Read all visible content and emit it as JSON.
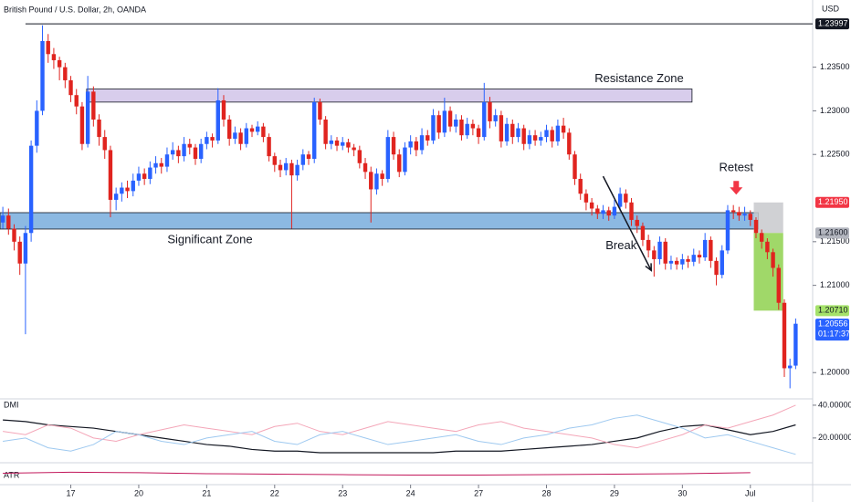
{
  "chart_data": [
    {
      "type": "candlestick",
      "title": "British Pound / U.S. Dollar, 2h, OANDA",
      "currency": "USD",
      "up_color": "#2962ff",
      "down_color": "#e0241f",
      "open": [
        1.2172,
        1.218,
        1.2165,
        1.215,
        1.2125,
        1.216,
        1.226,
        1.23,
        1.238,
        1.2365,
        1.2358,
        1.235,
        1.2335,
        1.2318,
        1.2305,
        1.2262,
        1.2322,
        1.229,
        1.227,
        1.2255,
        1.2198,
        1.2205,
        1.2212,
        1.2208,
        1.222,
        1.2228,
        1.2222,
        1.2235,
        1.224,
        1.2236,
        1.225,
        1.2255,
        1.2248,
        1.2262,
        1.2258,
        1.2245,
        1.2262,
        1.227,
        1.2266,
        1.2312,
        1.229,
        1.2268,
        1.2275,
        1.2262,
        1.228,
        1.2276,
        1.2282,
        1.227,
        1.2248,
        1.2238,
        1.2232,
        1.224,
        1.2226,
        1.2238,
        1.225,
        1.2245,
        1.231,
        1.229,
        1.2262,
        1.2266,
        1.226,
        1.2264,
        1.2258,
        1.2255,
        1.224,
        1.223,
        1.221,
        1.2228,
        1.2222,
        1.227,
        1.225,
        1.223,
        1.2258,
        1.2265,
        1.2255,
        1.2272,
        1.2266,
        1.2295,
        1.2275,
        1.23,
        1.2282,
        1.229,
        1.2272,
        1.2285,
        1.228,
        1.227,
        1.231,
        1.2288,
        1.2295,
        1.2265,
        1.2285,
        1.227,
        1.228,
        1.2262,
        1.2272,
        1.2266,
        1.227,
        1.2278,
        1.2265,
        1.2283,
        1.2275,
        1.225,
        1.2222,
        1.2205,
        1.2195,
        1.2188,
        1.2182,
        1.2186,
        1.218,
        1.219,
        1.2205,
        1.2195,
        1.2175,
        1.2168,
        1.2152,
        1.214,
        1.213,
        1.215,
        1.2125,
        1.2128,
        1.2124,
        1.213,
        1.2127,
        1.2135,
        1.2132,
        1.2152,
        1.2128,
        1.2112,
        1.214,
        1.2186,
        1.2184,
        1.218,
        1.2182,
        1.2175,
        1.216,
        1.215,
        1.2138,
        1.212,
        1.208,
        1.2005,
        1.2008
      ],
      "high": [
        1.219,
        1.2188,
        1.217,
        1.2156,
        1.2168,
        1.2266,
        1.2312,
        1.2398,
        1.2388,
        1.2372,
        1.2362,
        1.2355,
        1.234,
        1.2325,
        1.231,
        1.234,
        1.2328,
        1.2296,
        1.2278,
        1.226,
        1.2212,
        1.2218,
        1.222,
        1.2228,
        1.2236,
        1.2234,
        1.2242,
        1.2248,
        1.2246,
        1.2258,
        1.2264,
        1.226,
        1.227,
        1.2268,
        1.2262,
        1.2268,
        1.2276,
        1.2274,
        1.2326,
        1.2318,
        1.2295,
        1.2282,
        1.228,
        1.2286,
        1.2284,
        1.2288,
        1.2286,
        1.2274,
        1.2252,
        1.2244,
        1.2246,
        1.2244,
        1.2244,
        1.2256,
        1.2254,
        1.2315,
        1.2314,
        1.2294,
        1.2272,
        1.227,
        1.227,
        1.2268,
        1.2262,
        1.226,
        1.2246,
        1.2236,
        1.2234,
        1.2232,
        1.2278,
        1.2276,
        1.2256,
        1.2264,
        1.2272,
        1.227,
        1.228,
        1.2278,
        1.2302,
        1.23,
        1.2315,
        1.2305,
        1.2296,
        1.2295,
        1.2292,
        1.229,
        1.2284,
        1.2332,
        1.2316,
        1.2302,
        1.23,
        1.2292,
        1.229,
        1.2286,
        1.2284,
        1.2278,
        1.2278,
        1.2276,
        1.2284,
        1.2282,
        1.229,
        1.2292,
        1.228,
        1.2254,
        1.2228,
        1.221,
        1.22,
        1.2192,
        1.2192,
        1.219,
        1.2198,
        1.2212,
        1.221,
        1.22,
        1.218,
        1.2172,
        1.2158,
        1.2145,
        1.2156,
        1.2154,
        1.2134,
        1.2132,
        1.2136,
        1.2134,
        1.2142,
        1.214,
        1.216,
        1.2156,
        1.2132,
        1.2146,
        1.2192,
        1.2192,
        1.219,
        1.219,
        1.2186,
        1.2178,
        1.2164,
        1.2154,
        1.2142,
        1.2124,
        1.2084,
        1.2016,
        1.2062
      ],
      "low": [
        1.2165,
        1.2158,
        1.214,
        1.2112,
        1.2044,
        1.215,
        1.2252,
        1.2295,
        1.2355,
        1.2348,
        1.2335,
        1.2326,
        1.231,
        1.2296,
        1.2255,
        1.2258,
        1.2282,
        1.226,
        1.2245,
        1.2178,
        1.2186,
        1.2196,
        1.22,
        1.2202,
        1.2214,
        1.2215,
        1.2216,
        1.2228,
        1.2228,
        1.223,
        1.2244,
        1.224,
        1.2242,
        1.225,
        1.2238,
        1.224,
        1.2256,
        1.2258,
        1.2262,
        1.2282,
        1.226,
        1.2262,
        1.2255,
        1.2258,
        1.227,
        1.2272,
        1.2264,
        1.2242,
        1.223,
        1.2224,
        1.2226,
        1.2165,
        1.222,
        1.2232,
        1.2238,
        1.224,
        1.2284,
        1.2256,
        1.2256,
        1.2254,
        1.2255,
        1.2252,
        1.2248,
        1.2234,
        1.2222,
        1.2172,
        1.2204,
        1.2214,
        1.2218,
        1.2244,
        1.2224,
        1.2226,
        1.225,
        1.2248,
        1.225,
        1.226,
        1.2262,
        1.2268,
        1.227,
        1.2276,
        1.2275,
        1.2266,
        1.2268,
        1.2272,
        1.2262,
        1.2266,
        1.228,
        1.2282,
        1.2258,
        1.226,
        1.2262,
        1.2264,
        1.2255,
        1.2256,
        1.226,
        1.226,
        1.2264,
        1.2258,
        1.226,
        1.2268,
        1.2244,
        1.2215,
        1.2198,
        1.2186,
        1.218,
        1.2176,
        1.2176,
        1.2174,
        1.2176,
        1.2185,
        1.2188,
        1.2168,
        1.216,
        1.2145,
        1.2132,
        1.211,
        1.2124,
        1.2118,
        1.2118,
        1.2118,
        1.2118,
        1.212,
        1.2122,
        1.2125,
        1.2128,
        1.212,
        1.21,
        1.2108,
        1.2136,
        1.2176,
        1.2174,
        1.2174,
        1.2168,
        1.2154,
        1.2142,
        1.213,
        1.211,
        1.2072,
        1.1995,
        1.1982,
        1.2004
      ],
      "close": [
        1.218,
        1.2165,
        1.215,
        1.2125,
        1.216,
        1.226,
        1.23,
        1.238,
        1.2365,
        1.2358,
        1.235,
        1.2335,
        1.2318,
        1.2305,
        1.2262,
        1.2322,
        1.229,
        1.227,
        1.2255,
        1.2198,
        1.2205,
        1.2212,
        1.2208,
        1.222,
        1.2228,
        1.2222,
        1.2235,
        1.224,
        1.2236,
        1.225,
        1.2255,
        1.2248,
        1.2262,
        1.2258,
        1.2245,
        1.2262,
        1.227,
        1.2266,
        1.2312,
        1.229,
        1.2268,
        1.2275,
        1.2262,
        1.228,
        1.2276,
        1.2282,
        1.227,
        1.2248,
        1.2238,
        1.2232,
        1.224,
        1.2226,
        1.2238,
        1.225,
        1.2245,
        1.231,
        1.229,
        1.2262,
        1.2266,
        1.226,
        1.2264,
        1.2258,
        1.2255,
        1.224,
        1.223,
        1.221,
        1.2228,
        1.2222,
        1.227,
        1.225,
        1.223,
        1.2258,
        1.2265,
        1.2255,
        1.2272,
        1.2266,
        1.2295,
        1.2275,
        1.23,
        1.2282,
        1.229,
        1.2272,
        1.2285,
        1.228,
        1.227,
        1.231,
        1.2288,
        1.2295,
        1.2265,
        1.2285,
        1.227,
        1.228,
        1.2262,
        1.2272,
        1.2266,
        1.227,
        1.2278,
        1.2265,
        1.2283,
        1.2275,
        1.225,
        1.2222,
        1.2205,
        1.2195,
        1.2188,
        1.2182,
        1.2186,
        1.218,
        1.219,
        1.2205,
        1.2195,
        1.2175,
        1.2168,
        1.2152,
        1.214,
        1.213,
        1.215,
        1.2125,
        1.2128,
        1.2124,
        1.213,
        1.2127,
        1.2135,
        1.2132,
        1.2152,
        1.2128,
        1.2112,
        1.214,
        1.2186,
        1.2184,
        1.218,
        1.2182,
        1.2175,
        1.216,
        1.215,
        1.2138,
        1.212,
        1.208,
        1.2005,
        1.2008,
        1.2056
      ],
      "xlim": [
        -0.5,
        143
      ],
      "ylim": [
        1.1972,
        1.2427
      ],
      "yticks": [
        {
          "value": 1.235,
          "label": "1.23500"
        },
        {
          "value": 1.23,
          "label": "1.23000"
        },
        {
          "value": 1.225,
          "label": "1.22500"
        },
        {
          "value": 1.215,
          "label": "1.21500"
        },
        {
          "value": 1.21,
          "label": "1.21000"
        },
        {
          "value": 1.2,
          "label": "1.20000"
        }
      ],
      "xticks": [
        {
          "value": 12,
          "label": "17"
        },
        {
          "value": 24,
          "label": "20"
        },
        {
          "value": 36,
          "label": "21"
        },
        {
          "value": 48,
          "label": "22"
        },
        {
          "value": 60,
          "label": "23"
        },
        {
          "value": 72,
          "label": "24"
        },
        {
          "value": 84,
          "label": "27"
        },
        {
          "value": 96,
          "label": "28"
        },
        {
          "value": 108,
          "label": "29"
        },
        {
          "value": 120,
          "label": "30"
        },
        {
          "value": 132,
          "label": "Jul"
        }
      ],
      "price_labels": [
        {
          "value": 1.23997,
          "label": "1.23997",
          "color": "#131722",
          "text_color": "#ffffff"
        },
        {
          "value": 1.2195,
          "label": "1.21950",
          "color": "#f23645",
          "text_color": "#ffffff"
        },
        {
          "value": 1.216,
          "label": "1.21600",
          "color": "#b2b5be",
          "text_color": "#131722"
        },
        {
          "value": 1.2071,
          "label": "1.20710",
          "color": "#a5e26a",
          "text_color": "#131722"
        },
        {
          "value": 1.20556,
          "label": "1.20556",
          "color": "#2962ff",
          "text_color": "#ffffff",
          "countdown": "01:17:37"
        }
      ],
      "hline": {
        "value": 1.23997,
        "from": 4
      },
      "zones": [
        {
          "label": "Resistance Zone",
          "xlim": [
            14.8,
            121.7
          ],
          "ylim": [
            1.231,
            1.2325
          ],
          "color": "#d1c4e9"
        },
        {
          "label": "Significant Zone",
          "xlim": [
            -0.5,
            133.4
          ],
          "ylim": [
            1.21645,
            1.21833
          ],
          "color": "#5b9bd5"
        }
      ],
      "boxes": [
        {
          "xlim": [
            132.6,
            137.8
          ],
          "ylim": [
            1.216,
            1.2195
          ],
          "color": "#c8c9cc"
        },
        {
          "xlim": [
            132.6,
            137.8
          ],
          "ylim": [
            1.2071,
            1.216
          ],
          "color": "#8fd14f"
        }
      ],
      "break_arrow": {
        "label": "Break",
        "from": [
          106,
          1.2225
        ],
        "to": [
          114.5,
          1.2117
        ]
      },
      "retest_arrow": {
        "label": "Retest",
        "at": [
          129.5,
          1.2205
        ]
      }
    },
    {
      "type": "line",
      "label": "DMI",
      "ylim": [
        6,
        42.2
      ],
      "yticks": [
        {
          "value": 40,
          "label": "40.00000"
        },
        {
          "value": 20,
          "label": "20.00000"
        }
      ],
      "x": [
        0,
        4,
        8,
        12,
        16,
        20,
        24,
        28,
        32,
        36,
        40,
        44,
        48,
        52,
        56,
        60,
        64,
        68,
        72,
        76,
        80,
        84,
        88,
        92,
        96,
        100,
        104,
        108,
        112,
        116,
        120,
        124,
        128,
        132,
        136,
        140
      ],
      "series": [
        {
          "color": "#131722",
          "values": [
            31,
            30,
            28,
            27,
            26,
            24,
            22,
            20,
            18,
            16,
            15,
            13,
            12,
            12,
            11,
            11,
            11,
            11,
            11,
            11,
            12,
            12,
            12,
            13,
            14,
            15,
            16,
            18,
            20,
            24,
            27,
            28,
            25,
            22,
            24,
            28
          ]
        },
        {
          "color": "#f4a6b8",
          "values": [
            24,
            22,
            28,
            26,
            20,
            18,
            22,
            25,
            28,
            26,
            24,
            22,
            27,
            29,
            24,
            22,
            26,
            30,
            28,
            26,
            24,
            28,
            30,
            26,
            24,
            22,
            20,
            16,
            14,
            18,
            22,
            28,
            26,
            30,
            34,
            40
          ]
        },
        {
          "color": "#9ec9f0",
          "values": [
            18,
            20,
            14,
            12,
            16,
            24,
            22,
            18,
            16,
            20,
            22,
            24,
            18,
            16,
            22,
            24,
            20,
            16,
            18,
            20,
            22,
            18,
            16,
            20,
            22,
            26,
            28,
            32,
            34,
            30,
            26,
            20,
            22,
            18,
            14,
            10
          ]
        }
      ]
    },
    {
      "type": "line",
      "label": "ATR",
      "ylim": [
        0,
        0.004
      ],
      "x": [
        0,
        12,
        24,
        36,
        48,
        60,
        72,
        84,
        96,
        108,
        120,
        132
      ],
      "series": [
        {
          "color": "#c2185b",
          "values": [
            0.0022,
            0.0024,
            0.0023,
            0.0021,
            0.002,
            0.0019,
            0.0018,
            0.0018,
            0.0019,
            0.002,
            0.0021,
            0.0023
          ]
        }
      ]
    }
  ]
}
